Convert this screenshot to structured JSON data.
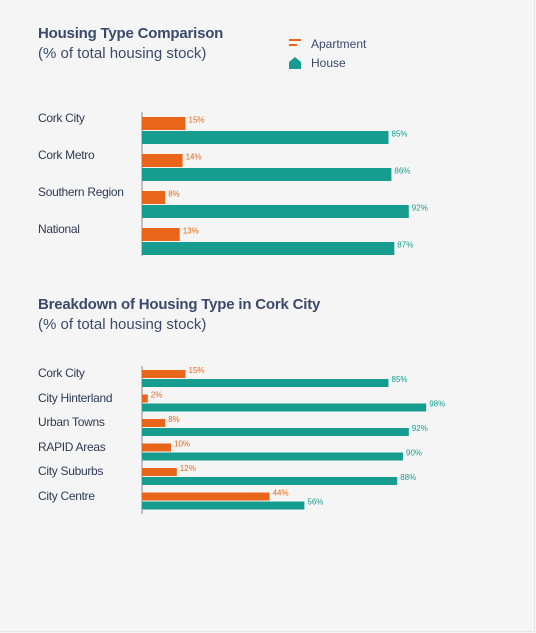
{
  "colors": {
    "apartment": "#e8651a",
    "house": "#179d8f"
  },
  "legend": {
    "apartment": "Apartment",
    "house": "House"
  },
  "chart_data": [
    {
      "type": "bar",
      "title": "Housing Type Comparison",
      "subtitle": "(% of total housing stock)",
      "categories": [
        "Cork City",
        "Cork Metro",
        "Southern Region",
        "National"
      ],
      "series": [
        {
          "name": "Apartment",
          "values": [
            15,
            14,
            8,
            13
          ],
          "labels": [
            "15%",
            "14%",
            "8%",
            "13%"
          ]
        },
        {
          "name": "House",
          "values": [
            85,
            86,
            92,
            87
          ],
          "labels": [
            "85%",
            "86%",
            "92%",
            "87%"
          ]
        }
      ]
    },
    {
      "type": "bar",
      "title": "Breakdown of Housing Type in Cork City",
      "subtitle": "(% of total housing stock)",
      "categories": [
        "Cork City",
        "City Hinterland",
        "Urban Towns",
        "RAPID Areas",
        "City Suburbs",
        "City Centre"
      ],
      "series": [
        {
          "name": "Apartment",
          "values": [
            15,
            2,
            8,
            10,
            12,
            44
          ],
          "labels": [
            "15%",
            "2%",
            "8%",
            "10%",
            "12%",
            "44%"
          ]
        },
        {
          "name": "House",
          "values": [
            85,
            98,
            92,
            90,
            88,
            56
          ],
          "labels": [
            "85%",
            "98%",
            "92%",
            "90%",
            "88%",
            "56%"
          ]
        }
      ]
    }
  ]
}
